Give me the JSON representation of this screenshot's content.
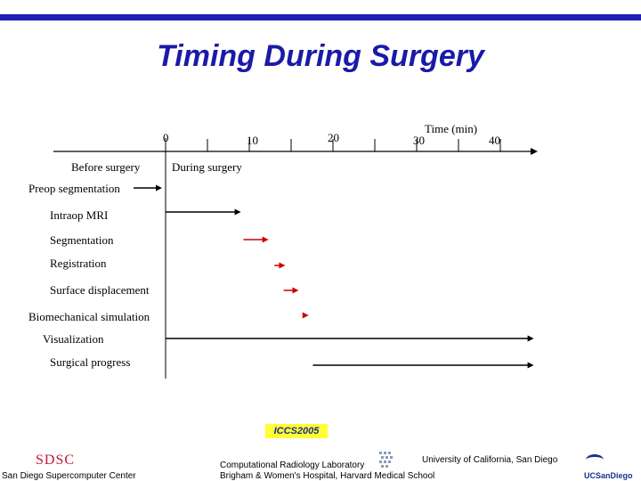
{
  "title": "Timing During Surgery",
  "axis": {
    "label": "Time (min)",
    "ticks": [
      "0",
      "10",
      "20",
      "30",
      "40"
    ],
    "before_label": "Before surgery",
    "during_label": "During surgery"
  },
  "rows": [
    {
      "label": "Preop segmentation",
      "start": -3,
      "end": 0
    },
    {
      "label": "Intraop MRI",
      "start": 0,
      "end": 9
    },
    {
      "label": "Segmentation",
      "start": 9.3,
      "end": 12.3
    },
    {
      "label": "Registration",
      "start": 13,
      "end": 14.3
    },
    {
      "label": "Surface displacement",
      "start": 14.1,
      "end": 15.9
    },
    {
      "label": "Biomechanical simulation",
      "start": 16.4,
      "end": 17.1
    },
    {
      "label": "Visualization",
      "start": 0,
      "end": 44
    },
    {
      "label": "Surgical progress",
      "start": 17.6,
      "end": 44
    }
  ],
  "colors": {
    "title": "#1a1aa8",
    "bar": "#1f1fb4",
    "black": "#000000",
    "red": "#cc0000",
    "iccs_bg": "#ffff33"
  },
  "footer": {
    "sdsc_logo": "SDSC",
    "sdsc_name": "San Diego Supercomputer Center",
    "conference": "ICCS2005",
    "lab_line1": "Computational Radiology Laboratory",
    "lab_line2": "Brigham & Women's Hospital, Harvard Medical School",
    "university": "University of California, San Diego",
    "ucsd_logo": "UCSanDiego"
  }
}
